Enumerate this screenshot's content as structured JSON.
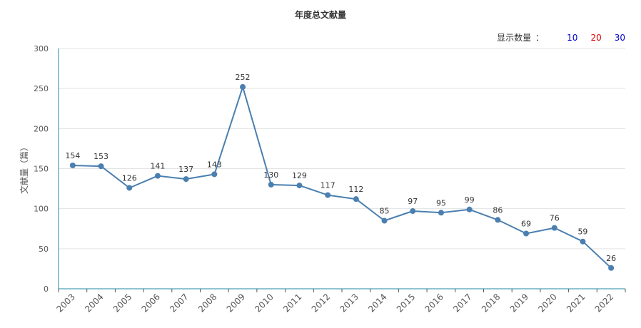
{
  "chart_data": {
    "type": "line",
    "title": "年度总文献量",
    "ylabel": "文献量（篇）",
    "xlabel": "",
    "categories": [
      "2003",
      "2004",
      "2005",
      "2006",
      "2007",
      "2008",
      "2009",
      "2010",
      "2011",
      "2012",
      "2013",
      "2014",
      "2015",
      "2016",
      "2017",
      "2018",
      "2019",
      "2020",
      "2021",
      "2022"
    ],
    "values": [
      154,
      153,
      126,
      141,
      137,
      143,
      252,
      130,
      129,
      117,
      112,
      85,
      97,
      95,
      99,
      86,
      69,
      76,
      59,
      26
    ],
    "ylim": [
      0,
      300
    ],
    "yticks": [
      0,
      50,
      100,
      150,
      200,
      250,
      300
    ],
    "grid": true,
    "line_color": "#4a7fb0",
    "axis_color": "#1f8a9e"
  },
  "controls": {
    "display_count_label": "显示数量",
    "colon": "：",
    "options": [
      {
        "label": "10",
        "color": "#0000cc"
      },
      {
        "label": "20",
        "color": "#e00000"
      },
      {
        "label": "30",
        "color": "#0000cc"
      }
    ]
  }
}
